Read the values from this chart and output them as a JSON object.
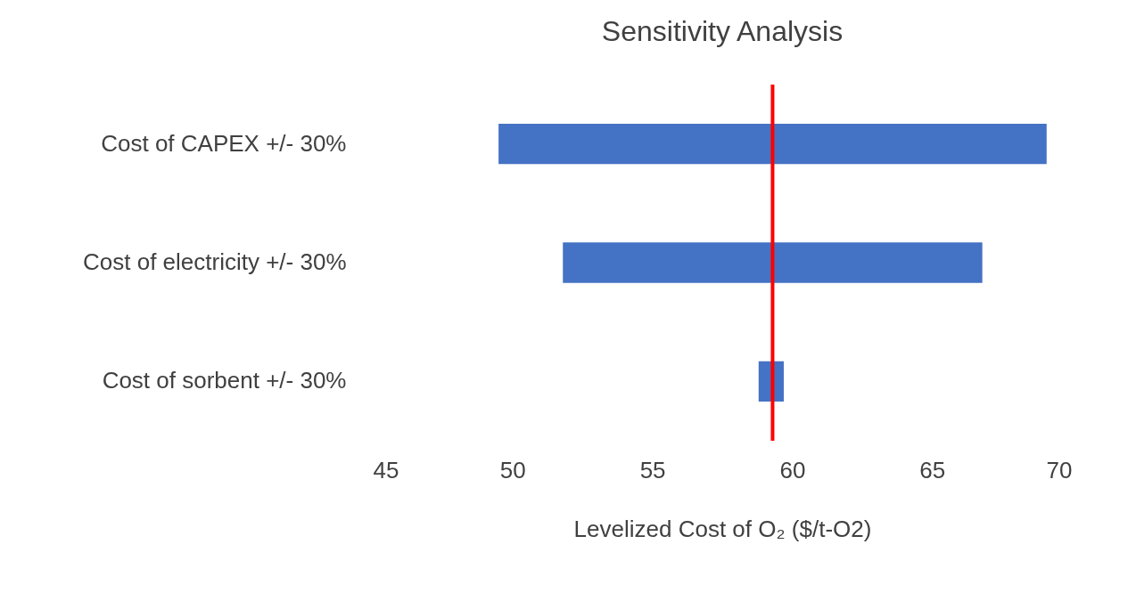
{
  "chart_data": {
    "type": "bar",
    "orientation": "horizontal",
    "title": "Sensitivity Analysis",
    "xlabel": "Levelized Cost of O₂ ($/t-O2)",
    "categories": [
      "Cost of CAPEX +/- 30%",
      "Cost of electricity  +/- 30%",
      "Cost of sorbent +/- 30%"
    ],
    "base": [
      49.5,
      51.8,
      58.8
    ],
    "values": [
      19.6,
      15.0,
      0.9
    ],
    "color": "#4472c4",
    "xlim": [
      45,
      70
    ],
    "xticks": [
      45,
      50,
      55,
      60,
      65,
      70
    ],
    "ref_lines": [
      {
        "axis": "x",
        "value": 59.3,
        "color": "#ff0000"
      }
    ],
    "grid": false
  }
}
